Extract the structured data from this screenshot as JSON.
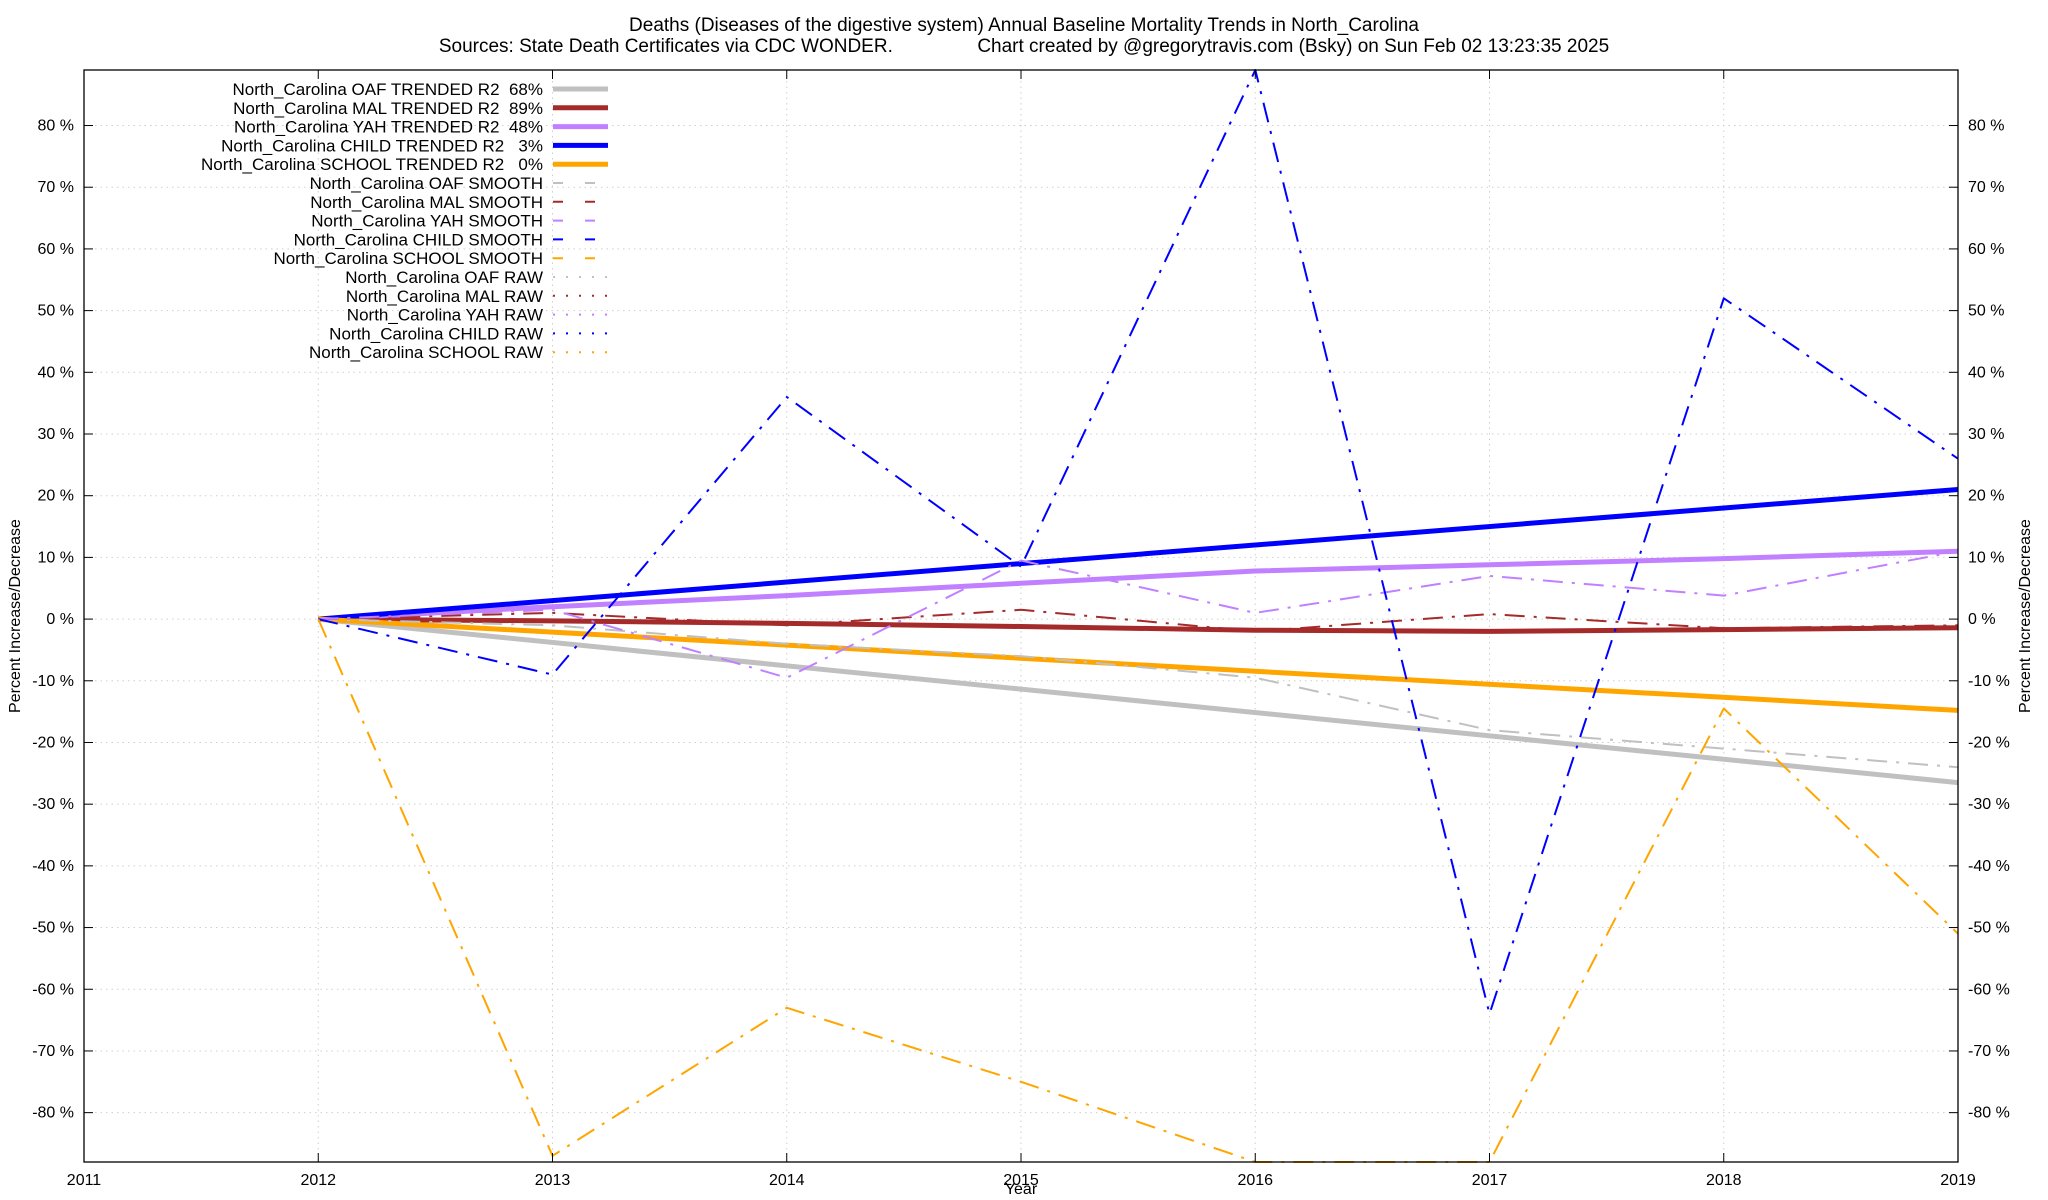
{
  "chart_data": {
    "type": "line",
    "title": "Deaths (Diseases of the digestive system)  Annual Baseline Mortality Trends in North_Carolina",
    "subtitle": "Sources: State Death Certificates via CDC WONDER.                Chart created by @gregorytravis.com (Bsky) on Sun Feb 02 13:23:35 2025",
    "xlabel": "Year",
    "ylabel": "Percent Increase/Decrease",
    "ylabel_right": "Percent Increase/Decrease",
    "xlim": [
      2011,
      2019
    ],
    "ylim": [
      -88,
      89
    ],
    "x_ticks": [
      2011,
      2012,
      2013,
      2014,
      2015,
      2016,
      2017,
      2018,
      2019
    ],
    "y_ticks": [
      80,
      70,
      60,
      50,
      40,
      30,
      20,
      10,
      0,
      -10,
      -20,
      -30,
      -40,
      -50,
      -60,
      -70,
      -80
    ],
    "y_tick_suffix": " %",
    "grid": true,
    "legend_position": "top-left",
    "series": [
      {
        "name": "North_Carolina OAF TRENDED R2  68%",
        "color": "#c0c0c0",
        "style": "solid",
        "width": 5,
        "x": [
          2012,
          2019
        ],
        "y": [
          0,
          -26.5
        ]
      },
      {
        "name": "North_Carolina MAL TRENDED R2  89%",
        "color": "#a52a2a",
        "style": "solid",
        "width": 5,
        "x": [
          2012,
          2013,
          2014,
          2015,
          2016,
          2017,
          2018,
          2019
        ],
        "y": [
          0,
          -0.3,
          -0.7,
          -1.2,
          -1.8,
          -2.0,
          -1.7,
          -1.4
        ]
      },
      {
        "name": "North_Carolina YAH TRENDED R2  48%",
        "color": "#c080ff",
        "style": "solid",
        "width": 5,
        "x": [
          2012,
          2013,
          2014,
          2015,
          2016,
          2017,
          2018,
          2019
        ],
        "y": [
          0,
          2.0,
          3.8,
          5.8,
          7.8,
          8.8,
          9.8,
          11.0
        ]
      },
      {
        "name": "North_Carolina CHILD TRENDED R2   3%",
        "color": "#0000ff",
        "style": "solid",
        "width": 5,
        "x": [
          2012,
          2019
        ],
        "y": [
          0,
          21
        ]
      },
      {
        "name": "North_Carolina SCHOOL TRENDED R2   0%",
        "color": "#ffa500",
        "style": "solid",
        "width": 5,
        "x": [
          2012,
          2019
        ],
        "y": [
          0,
          -14.8
        ]
      },
      {
        "name": "North_Carolina OAF SMOOTH",
        "color": "#c0c0c0",
        "style": "dashdot",
        "width": 2,
        "x": [
          2012,
          2013,
          2014,
          2015,
          2016,
          2017,
          2018,
          2019
        ],
        "y": [
          0,
          -1.0,
          -4.0,
          -6.0,
          -9.5,
          -18.0,
          -21.0,
          -24.0
        ]
      },
      {
        "name": "North_Carolina MAL SMOOTH",
        "color": "#a52a2a",
        "style": "dashdot",
        "width": 2,
        "x": [
          2012,
          2013,
          2014,
          2015,
          2016,
          2017,
          2018,
          2019
        ],
        "y": [
          0,
          1.0,
          -1.0,
          1.5,
          -2.0,
          0.8,
          -1.5,
          -1.0
        ]
      },
      {
        "name": "North_Carolina YAH SMOOTH",
        "color": "#c080ff",
        "style": "dashdot",
        "width": 2,
        "x": [
          2012,
          2013,
          2014,
          2015,
          2016,
          2017,
          2018,
          2019
        ],
        "y": [
          0,
          1.5,
          -9.5,
          9.5,
          1.0,
          7.0,
          3.8,
          11.0
        ]
      },
      {
        "name": "North_Carolina CHILD SMOOTH",
        "color": "#0000ff",
        "style": "dashdot",
        "width": 2,
        "x": [
          2012,
          2013,
          2014,
          2015,
          2016,
          2017,
          2018,
          2019
        ],
        "y": [
          0,
          -9.0,
          36.0,
          8.5,
          89.0,
          -64.0,
          52.0,
          26.0
        ]
      },
      {
        "name": "North_Carolina SCHOOL SMOOTH",
        "color": "#ffa500",
        "style": "dashdot",
        "width": 2,
        "x": [
          2012,
          2013,
          2014,
          2015,
          2016,
          2017,
          2018,
          2019
        ],
        "y": [
          0,
          -87.0,
          -63.0,
          -75.0,
          -88.0,
          -88.0,
          -14.5,
          -51.0
        ]
      },
      {
        "name": "North_Carolina OAF RAW",
        "color": "#c0c0c0",
        "style": "dotted",
        "width": 2,
        "x": [],
        "y": []
      },
      {
        "name": "North_Carolina MAL RAW",
        "color": "#a52a2a",
        "style": "dotted",
        "width": 2,
        "x": [],
        "y": []
      },
      {
        "name": "North_Carolina YAH RAW",
        "color": "#c080ff",
        "style": "dotted",
        "width": 2,
        "x": [],
        "y": []
      },
      {
        "name": "North_Carolina CHILD RAW",
        "color": "#0000ff",
        "style": "dotted",
        "width": 2,
        "x": [],
        "y": []
      },
      {
        "name": "North_Carolina SCHOOL RAW",
        "color": "#ffa500",
        "style": "dotted",
        "width": 2,
        "x": [],
        "y": []
      }
    ]
  }
}
